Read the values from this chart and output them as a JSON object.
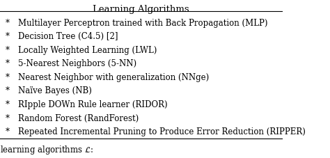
{
  "title": "Learning Algorithms",
  "items": [
    "Multilayer Perceptron trained with Back Propagation (MLP)",
    "Decision Tree (C4.5) [2]",
    "Locally Weighted Learning (LWL)",
    "5-Nearest Neighbors (5-NN)",
    "Nearest Neighbor with generalization (NNge)",
    "Naïve Bayes (NB)",
    "RIpple DOWn Rule learner (RIDOR)",
    "Random Forest (RandForest)",
    "Repeated Incremental Pruning to Produce Error Reduction (RIPPER)"
  ],
  "bullet": "*",
  "footer": "learning algorithms $\\mathcal{L}$:",
  "bg_color": "#ffffff",
  "text_color": "#000000",
  "title_fontsize": 9.5,
  "body_fontsize": 8.5,
  "footer_fontsize": 8.5,
  "fig_width": 4.74,
  "fig_height": 2.27,
  "dpi": 100
}
